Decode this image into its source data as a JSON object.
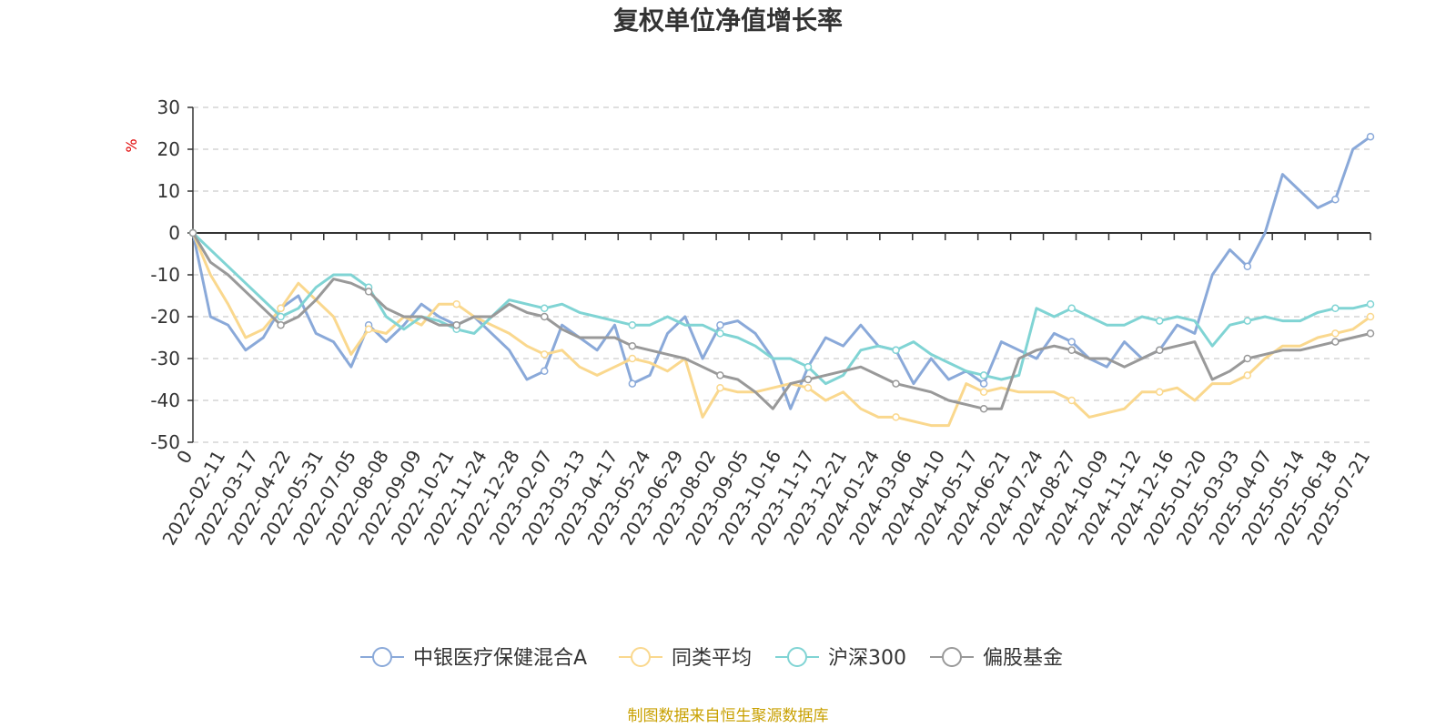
{
  "chart_data": {
    "type": "line",
    "title": "复权单位净值增长率",
    "ylabel": "%",
    "ylim": [
      -50,
      30
    ],
    "yticks": [
      "30",
      "20",
      "10",
      "0",
      "-10",
      "-20",
      "-30",
      "-40",
      "-50"
    ],
    "x_first_label": "0",
    "xlabels": [
      "2022-02-11",
      "2022-03-17",
      "2022-04-22",
      "2022-05-31",
      "2022-07-05",
      "2022-08-08",
      "2022-09-09",
      "2022-10-21",
      "2022-11-24",
      "2022-12-28",
      "2023-02-07",
      "2023-03-13",
      "2023-04-17",
      "2023-05-24",
      "2023-06-29",
      "2023-08-02",
      "2023-09-05",
      "2023-10-16",
      "2023-11-17",
      "2023-12-21",
      "2024-01-24",
      "2024-03-06",
      "2024-04-10",
      "2024-05-17",
      "2024-06-21",
      "2024-07-24",
      "2024-08-27",
      "2024-10-09",
      "2024-11-12",
      "2024-12-16",
      "2025-01-20",
      "2025-03-03",
      "2025-04-07",
      "2025-05-14",
      "2025-06-18",
      "2025-07-21"
    ],
    "grid": true,
    "legend_position": "bottom",
    "series": [
      {
        "name": "中银医疗保健混合A",
        "color": "#8aa9d9",
        "values": [
          0,
          -20,
          -22,
          -28,
          -25,
          -18,
          -15,
          -24,
          -26,
          -32,
          -22,
          -26,
          -22,
          -17,
          -20,
          -22,
          -20,
          -24,
          -28,
          -35,
          -33,
          -22,
          -25,
          -28,
          -22,
          -36,
          -34,
          -24,
          -20,
          -30,
          -22,
          -21,
          -24,
          -30,
          -42,
          -32,
          -25,
          -27,
          -22,
          -27,
          -28,
          -36,
          -30,
          -35,
          -33,
          -36,
          -26,
          -28,
          -30,
          -24,
          -26,
          -30,
          -32,
          -26,
          -30,
          -28,
          -22,
          -24,
          -10,
          -4,
          -8,
          0,
          14,
          10,
          6,
          8,
          20,
          23
        ]
      },
      {
        "name": "同类平均",
        "color": "#fad88e",
        "values": [
          0,
          -10,
          -17,
          -25,
          -23,
          -18,
          -12,
          -16,
          -20,
          -29,
          -23,
          -24,
          -20,
          -22,
          -17,
          -17,
          -20,
          -22,
          -24,
          -27,
          -29,
          -28,
          -32,
          -34,
          -32,
          -30,
          -31,
          -33,
          -30,
          -44,
          -37,
          -38,
          -38,
          -37,
          -36,
          -37,
          -40,
          -38,
          -42,
          -44,
          -44,
          -45,
          -46,
          -46,
          -36,
          -38,
          -37,
          -38,
          -38,
          -38,
          -40,
          -44,
          -43,
          -42,
          -38,
          -38,
          -37,
          -40,
          -36,
          -36,
          -34,
          -30,
          -27,
          -27,
          -25,
          -24,
          -23,
          -20
        ]
      },
      {
        "name": "沪深300",
        "color": "#80d4d4",
        "values": [
          0,
          -4,
          -8,
          -12,
          -16,
          -20,
          -18,
          -13,
          -10,
          -10,
          -13,
          -20,
          -23,
          -20,
          -21,
          -23,
          -24,
          -20,
          -16,
          -17,
          -18,
          -17,
          -19,
          -20,
          -21,
          -22,
          -22,
          -20,
          -22,
          -22,
          -24,
          -25,
          -27,
          -30,
          -30,
          -32,
          -36,
          -34,
          -28,
          -27,
          -28,
          -26,
          -29,
          -31,
          -33,
          -34,
          -35,
          -34,
          -18,
          -20,
          -18,
          -20,
          -22,
          -22,
          -20,
          -21,
          -20,
          -21,
          -27,
          -22,
          -21,
          -20,
          -21,
          -21,
          -19,
          -18,
          -18,
          -17
        ]
      },
      {
        "name": "偏股基金",
        "color": "#999999",
        "values": [
          0,
          -7,
          -10,
          -14,
          -18,
          -22,
          -20,
          -16,
          -11,
          -12,
          -14,
          -18,
          -20,
          -20,
          -22,
          -22,
          -20,
          -20,
          -17,
          -19,
          -20,
          -23,
          -25,
          -25,
          -25,
          -27,
          -28,
          -29,
          -30,
          -32,
          -34,
          -35,
          -38,
          -42,
          -36,
          -35,
          -34,
          -33,
          -32,
          -34,
          -36,
          -37,
          -38,
          -40,
          -41,
          -42,
          -42,
          -30,
          -28,
          -27,
          -28,
          -30,
          -30,
          -32,
          -30,
          -28,
          -27,
          -26,
          -35,
          -33,
          -30,
          -29,
          -28,
          -28,
          -27,
          -26,
          -25,
          -24
        ]
      }
    ]
  },
  "source_text": "制图数据来自恒生聚源数据库"
}
